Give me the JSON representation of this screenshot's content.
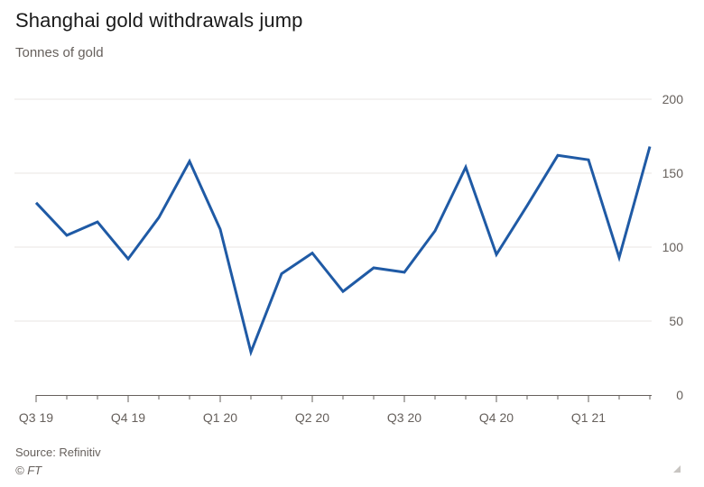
{
  "title": "Shanghai gold withdrawals jump",
  "subtitle": "Tonnes of gold",
  "source": "Source: Refinitiv",
  "copyright": "© FT",
  "colors": {
    "line": "#1f5aa5",
    "grid": "#e8e6e3",
    "axis": "#66605c",
    "text": "#66605c"
  },
  "chart_data": {
    "type": "line",
    "title": "Shanghai gold withdrawals jump",
    "ylabel": "Tonnes of gold",
    "ylim": [
      0,
      200
    ],
    "yticks": [
      0,
      50,
      100,
      150,
      200
    ],
    "grid": "horizontal",
    "xlabels": [
      "Q3 19",
      "Q4 19",
      "Q1 20",
      "Q2 20",
      "Q3 20",
      "Q4 20",
      "Q1 21"
    ],
    "x": [
      "2019-07",
      "2019-08",
      "2019-09",
      "2019-10",
      "2019-11",
      "2019-12",
      "2020-01",
      "2020-02",
      "2020-03",
      "2020-04",
      "2020-05",
      "2020-06",
      "2020-07",
      "2020-08",
      "2020-09",
      "2020-10",
      "2020-11",
      "2020-12",
      "2021-01",
      "2021-02",
      "2021-03"
    ],
    "series": [
      {
        "values": [
          130,
          108,
          117,
          92,
          120,
          158,
          112,
          29,
          82,
          96,
          70,
          86,
          83,
          111,
          154,
          95,
          128,
          162,
          159,
          93,
          168
        ]
      }
    ]
  }
}
